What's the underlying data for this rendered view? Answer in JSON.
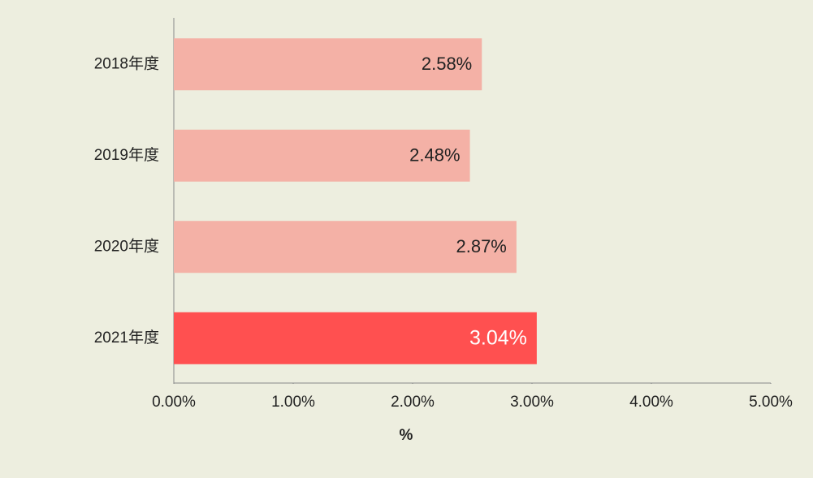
{
  "chart_data": {
    "type": "bar",
    "orientation": "horizontal",
    "categories": [
      "2018年度",
      "2019年度",
      "2020年度",
      "2021年度"
    ],
    "values": [
      2.58,
      2.48,
      2.87,
      3.04
    ],
    "value_labels": [
      "2.58%",
      "2.48%",
      "2.87%",
      "3.04%"
    ],
    "colors": [
      "#f4b1a6",
      "#f4b1a6",
      "#f4b1a6",
      "#ff5050"
    ],
    "value_label_colors": [
      "#222222",
      "#222222",
      "#222222",
      "#ffffff"
    ],
    "xlim": [
      0,
      5
    ],
    "xticks": [
      {
        "value": 0,
        "label": "0.00%"
      },
      {
        "value": 1,
        "label": "1.00%"
      },
      {
        "value": 2,
        "label": "2.00%"
      },
      {
        "value": 3,
        "label": "3.00%"
      },
      {
        "value": 4,
        "label": "4.00%"
      },
      {
        "value": 5,
        "label": "5.00%"
      }
    ],
    "xlabel": "%"
  }
}
